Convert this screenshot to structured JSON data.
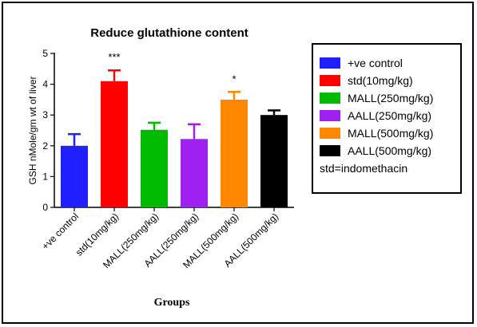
{
  "chart_data": {
    "type": "bar",
    "title": "Reduce glutathione content",
    "xlabel": "Groups",
    "ylabel": "GSH nMole/gm wt of liver",
    "ylim": [
      0,
      5
    ],
    "yticks": [
      0,
      1,
      2,
      3,
      4,
      5
    ],
    "categories": [
      "+ve control",
      "std(10mg/kg)",
      "MALL(250mg/kg)",
      "AALL(250mg/kg)",
      "MALL(500mg/kg)",
      "AALL(500mg/kg)"
    ],
    "values": [
      2.0,
      4.1,
      2.52,
      2.22,
      3.5,
      3.0
    ],
    "errors": [
      0.38,
      0.35,
      0.23,
      0.48,
      0.25,
      0.15
    ],
    "annotations": [
      "",
      "***",
      "",
      "",
      "*",
      ""
    ],
    "colors": [
      "#1f1fff",
      "#ff0000",
      "#00bb00",
      "#a020f0",
      "#ff8800",
      "#000000"
    ],
    "legend": {
      "placement": "right",
      "entries": [
        "+ve control",
        "std(10mg/kg)",
        "MALL(250mg/kg)",
        "AALL(250mg/kg)",
        "MALL(500mg/kg)",
        "AALL(500mg/kg)"
      ],
      "note": "std=indomethacin"
    }
  }
}
